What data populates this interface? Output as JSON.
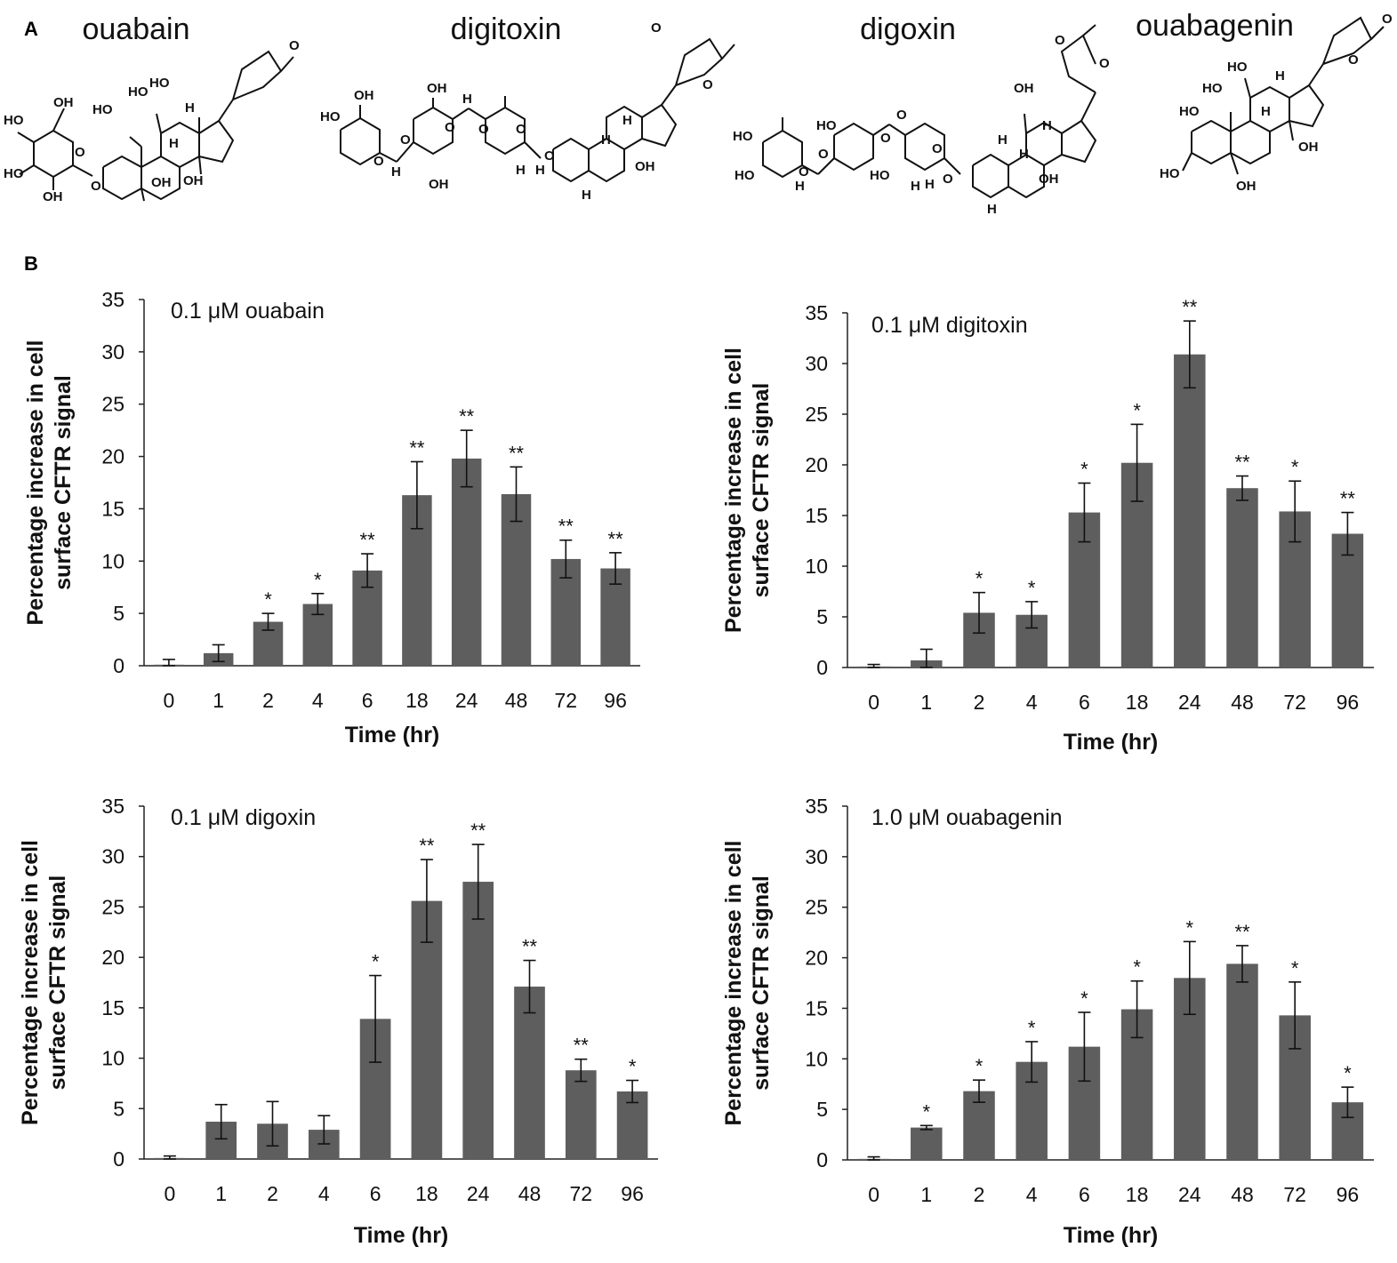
{
  "panels": {
    "a": "A",
    "b": "B"
  },
  "structures": [
    {
      "name": "ouabain",
      "atoms": [
        "HO",
        "OH",
        "HO",
        "OH",
        "O",
        "HO",
        "HO",
        "HO",
        "H",
        "H",
        "OH",
        "OH",
        "O",
        "O"
      ]
    },
    {
      "name": "digitoxin",
      "atoms": [
        "HO",
        "OH",
        "OH",
        "O",
        "H",
        "O",
        "H",
        "O",
        "O",
        "H",
        "OH",
        "O",
        "H",
        "O",
        "H",
        "H",
        "OH",
        "H",
        "O",
        "O"
      ]
    },
    {
      "name": "digoxin",
      "atoms": [
        "HO",
        "HO",
        "O",
        "H",
        "HO",
        "O",
        "O",
        "H",
        "O",
        "HO",
        "H",
        "O",
        "O",
        "H",
        "OH",
        "H",
        "H",
        "OH",
        "H",
        "O",
        "O"
      ]
    },
    {
      "name": "ouabagenin",
      "atoms": [
        "HO",
        "HO",
        "HO",
        "HO",
        "H",
        "H",
        "OH",
        "OH",
        "O",
        "O"
      ]
    }
  ],
  "chart_data": [
    {
      "type": "bar",
      "title": "0.1 μM ouabain",
      "xlabel": "Time (hr)",
      "ylabel": [
        "Percentage increase in cell",
        "surface CFTR signal"
      ],
      "ylim": [
        0,
        35
      ],
      "yticks": [
        "0",
        "5",
        "10",
        "15",
        "20",
        "25",
        "30",
        "35"
      ],
      "categories": [
        "0",
        "1",
        "2",
        "4",
        "6",
        "18",
        "24",
        "48",
        "72",
        "96"
      ],
      "values": [
        0.1,
        1.2,
        4.2,
        5.9,
        9.1,
        16.3,
        19.8,
        16.4,
        10.2,
        9.3
      ],
      "errors": [
        0.5,
        0.8,
        0.8,
        1.0,
        1.6,
        3.2,
        2.7,
        2.6,
        1.8,
        1.5
      ],
      "significance": [
        "",
        "",
        "*",
        "*",
        "**",
        "**",
        "**",
        "**",
        "**",
        "**"
      ],
      "color": "#5e5e5e"
    },
    {
      "type": "bar",
      "title": "0.1 μM digitoxin",
      "xlabel": "Time (hr)",
      "ylabel": [
        "Percentage increase in cell",
        "surface CFTR signal"
      ],
      "ylim": [
        0,
        35
      ],
      "yticks": [
        "0",
        "5",
        "10",
        "15",
        "20",
        "25",
        "30",
        "35"
      ],
      "categories": [
        "0",
        "1",
        "2",
        "4",
        "6",
        "18",
        "24",
        "48",
        "72",
        "96"
      ],
      "values": [
        0.1,
        0.7,
        5.4,
        5.2,
        15.3,
        20.2,
        30.9,
        17.7,
        15.4,
        13.2
      ],
      "errors": [
        0.2,
        1.1,
        2.0,
        1.3,
        2.9,
        3.8,
        3.3,
        1.2,
        3.0,
        2.1
      ],
      "significance": [
        "",
        "",
        "*",
        "*",
        "*",
        "*",
        "**",
        "**",
        "*",
        "**"
      ],
      "color": "#5e5e5e"
    },
    {
      "type": "bar",
      "title": "0.1 μM digoxin",
      "xlabel": "Time (hr)",
      "ylabel": [
        "Percentage increase in cell",
        "surface CFTR signal"
      ],
      "ylim": [
        0,
        35
      ],
      "yticks": [
        "0",
        "5",
        "10",
        "15",
        "20",
        "25",
        "30",
        "35"
      ],
      "categories": [
        "0",
        "1",
        "2",
        "4",
        "6",
        "18",
        "24",
        "48",
        "72",
        "96"
      ],
      "values": [
        0.1,
        3.7,
        3.5,
        2.9,
        13.9,
        25.6,
        27.5,
        17.1,
        8.8,
        6.7
      ],
      "errors": [
        0.2,
        1.7,
        2.2,
        1.4,
        4.3,
        4.1,
        3.7,
        2.6,
        1.1,
        1.1
      ],
      "significance": [
        "",
        "",
        "",
        "",
        "*",
        "**",
        "**",
        "**",
        "**",
        "*"
      ],
      "color": "#5e5e5e"
    },
    {
      "type": "bar",
      "title": "1.0 μM ouabagenin",
      "xlabel": "Time (hr)",
      "ylabel": [
        "Percentage increase in cell",
        "surface CFTR signal"
      ],
      "ylim": [
        0,
        35
      ],
      "yticks": [
        "0",
        "5",
        "10",
        "15",
        "20",
        "25",
        "30",
        "35"
      ],
      "categories": [
        "0",
        "1",
        "2",
        "4",
        "6",
        "18",
        "24",
        "48",
        "72",
        "96"
      ],
      "values": [
        0.1,
        3.2,
        6.8,
        9.7,
        11.2,
        14.9,
        18.0,
        19.4,
        14.3,
        5.7
      ],
      "errors": [
        0.2,
        0.2,
        1.1,
        2.0,
        3.4,
        2.8,
        3.6,
        1.8,
        3.3,
        1.5
      ],
      "significance": [
        "",
        "*",
        "*",
        "*",
        "*",
        "*",
        "*",
        "**",
        "*",
        "*"
      ],
      "color": "#5e5e5e"
    }
  ]
}
